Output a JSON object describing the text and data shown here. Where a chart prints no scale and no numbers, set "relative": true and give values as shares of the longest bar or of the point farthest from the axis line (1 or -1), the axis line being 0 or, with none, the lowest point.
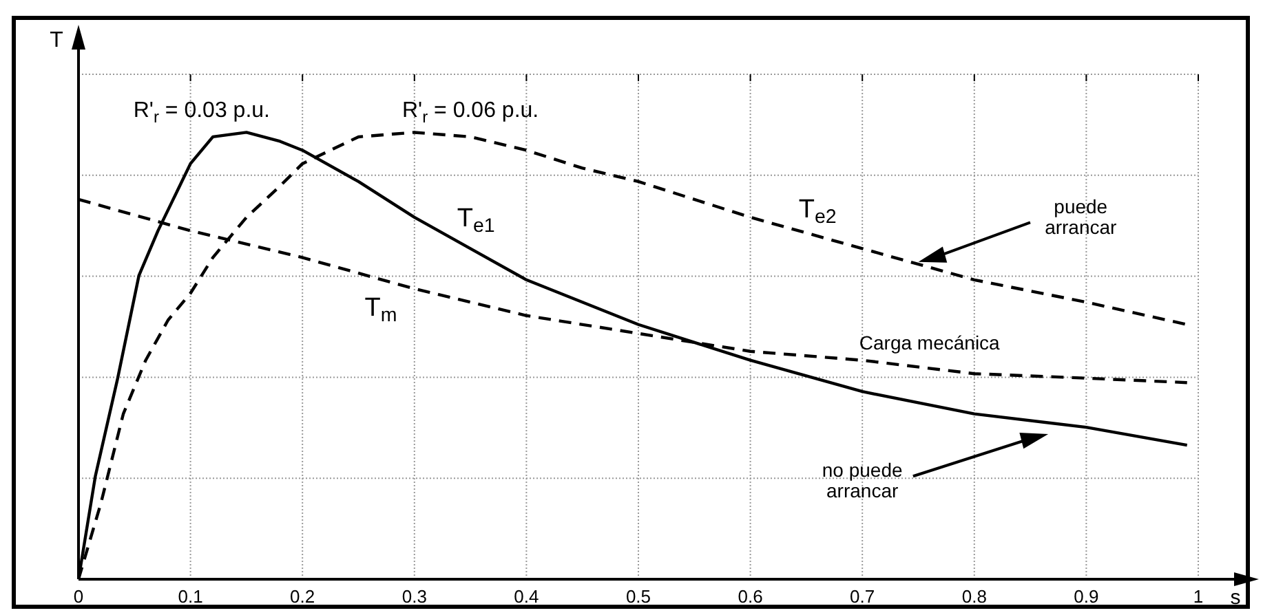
{
  "chart_data": {
    "type": "line",
    "relative": true,
    "xlabel": "s",
    "ylabel": "T",
    "xlim": [
      0,
      1
    ],
    "xticks": [
      0,
      0.1,
      0.2,
      0.3,
      0.4,
      0.5,
      0.6,
      0.7,
      0.8,
      0.9,
      1
    ],
    "grid": true,
    "series": [
      {
        "name": "T$_{e1}$",
        "color": "#000000",
        "line_style": "solid",
        "x": [
          0,
          0.015,
          0.035,
          0.054,
          0.071,
          0.1,
          0.12,
          0.15,
          0.18,
          0.2,
          0.25,
          0.3,
          0.35,
          0.4,
          0.45,
          0.5,
          0.6,
          0.7,
          0.8,
          0.9,
          0.99
        ],
        "values": [
          0,
          0.23,
          0.45,
          0.68,
          0.78,
          0.93,
          0.99,
          1,
          0.98,
          0.96,
          0.89,
          0.81,
          0.74,
          0.67,
          0.62,
          0.57,
          0.49,
          0.42,
          0.37,
          0.34,
          0.3
        ]
      },
      {
        "name": "T$_{e2}$",
        "color": "#000000",
        "line_style": "dashed",
        "x": [
          0,
          0.02,
          0.04,
          0.06,
          0.08,
          0.1,
          0.12,
          0.15,
          0.18,
          0.2,
          0.25,
          0.3,
          0.35,
          0.4,
          0.45,
          0.5,
          0.6,
          0.7,
          0.8,
          0.9,
          0.99
        ],
        "values": [
          0,
          0.17,
          0.37,
          0.49,
          0.58,
          0.64,
          0.72,
          0.81,
          0.88,
          0.93,
          0.99,
          1,
          0.99,
          0.96,
          0.92,
          0.89,
          0.81,
          0.74,
          0.67,
          0.62,
          0.57
        ]
      },
      {
        "name": "T$_{m}$",
        "color": "#000000",
        "line_style": "dashed",
        "x": [
          0,
          0.1,
          0.2,
          0.3,
          0.4,
          0.5,
          0.6,
          0.7,
          0.8,
          0.9,
          0.99
        ],
        "values": [
          0.85,
          0.78,
          0.72,
          0.65,
          0.59,
          0.55,
          0.51,
          0.49,
          0.46,
          0.45,
          0.44
        ]
      }
    ],
    "annotations": [
      "R'$_{r}$ = 0.03 p.u.",
      "R'$_{r}$ = 0.06 p.u.",
      "Carga mecánica",
      "puede\narrancar",
      "no puede\narrancar"
    ]
  }
}
